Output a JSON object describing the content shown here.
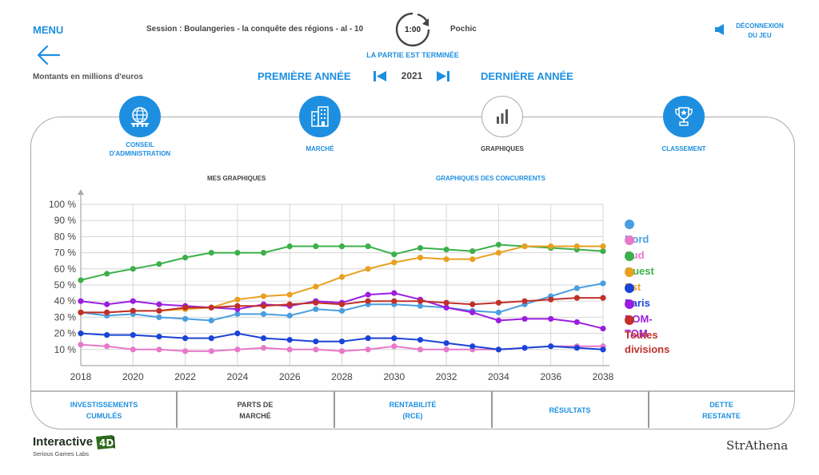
{
  "header": {
    "menu_label": "MENU",
    "session": "Session : Boulangeries - la conquête des régions - al - 10",
    "timer": "1:00",
    "user": "Pochic",
    "status": "LA PARTIE EST TERMINÉE",
    "logout_line1": "DÉCONNEXION",
    "logout_line2": "DU JEU"
  },
  "subheader": {
    "amount_note": "Montants en millions d'euros",
    "first_year_label": "PREMIÈRE ANNÉE",
    "year": "2021",
    "last_year_label": "DERNIÈRE ANNÉE"
  },
  "tabs": [
    {
      "line1": "CONSEIL",
      "line2": "D'ADMINISTRATION",
      "icon": "globe-board-icon",
      "active": false
    },
    {
      "line1": "MARCHÉ",
      "line2": "",
      "icon": "buildings-icon",
      "active": false
    },
    {
      "line1": "GRAPHIQUES",
      "line2": "",
      "icon": "bar-chart-icon",
      "active": true
    },
    {
      "line1": "CLASSEMENT",
      "line2": "",
      "icon": "trophy-icon",
      "active": false
    }
  ],
  "subtabs": {
    "mine": "MES GRAPHIQUES",
    "competitors": "GRAPHIQUES DES CONCURRENTS"
  },
  "bottom_tabs": [
    {
      "line1": "INVESTISSEMENTS",
      "line2": "CUMULÉS",
      "active": false
    },
    {
      "line1": "PARTS DE",
      "line2": "MARCHÉ",
      "active": true
    },
    {
      "line1": "RENTABILITÉ",
      "line2": "(RCE)",
      "active": false
    },
    {
      "line1": "RÉSULTATS",
      "line2": "",
      "active": false
    },
    {
      "line1": "DETTE",
      "line2": "RESTANTE",
      "active": false
    }
  ],
  "branding": {
    "company": "Interactive",
    "company_4d": "4D",
    "company_sub": "Serious Games Labs",
    "partner": "StrAthena"
  },
  "colors": {
    "accent": "#1e8fe0"
  },
  "chart_data": {
    "type": "line",
    "title": "",
    "xlabel": "",
    "ylabel": "",
    "x": [
      2018,
      2019,
      2020,
      2021,
      2022,
      2023,
      2024,
      2025,
      2026,
      2027,
      2028,
      2029,
      2030,
      2031,
      2032,
      2033,
      2034,
      2035,
      2036,
      2037,
      2038
    ],
    "xticks": [
      "2018",
      "2020",
      "2022",
      "2024",
      "2026",
      "2028",
      "2030",
      "2032",
      "2034",
      "2036",
      "2038"
    ],
    "yticks": [
      "10 %",
      "20 %",
      "30 %",
      "40 %",
      "50 %",
      "60 %",
      "70 %",
      "80 %",
      "90 %",
      "100 %"
    ],
    "ylim": [
      0,
      100
    ],
    "xlim": [
      2018,
      2038
    ],
    "grid": true,
    "legend_position": "right",
    "series": [
      {
        "name": "Nord",
        "color": "#4a9ee0",
        "values": [
          33,
          31,
          32,
          30,
          29,
          28,
          32,
          32,
          31,
          35,
          34,
          38,
          38,
          37,
          36,
          34,
          33,
          38,
          43,
          48,
          51
        ]
      },
      {
        "name": "Sud",
        "color": "#e879c9",
        "values": [
          13,
          12,
          10,
          10,
          9,
          9,
          10,
          11,
          10,
          10,
          9,
          10,
          12,
          10,
          10,
          10,
          10,
          11,
          12,
          12,
          12
        ]
      },
      {
        "name": "Ouest",
        "color": "#3cb04a",
        "values": [
          53,
          57,
          60,
          63,
          67,
          70,
          70,
          70,
          74,
          74,
          74,
          74,
          69,
          73,
          72,
          71,
          75,
          74,
          73,
          72,
          71
        ]
      },
      {
        "name": "Est",
        "color": "#e8a020",
        "values": [
          33,
          33,
          34,
          34,
          35,
          36,
          41,
          43,
          44,
          49,
          55,
          60,
          64,
          67,
          66,
          66,
          70,
          74,
          74,
          74,
          74
        ]
      },
      {
        "name": "Paris",
        "color": "#1a44d6",
        "values": [
          20,
          19,
          19,
          18,
          17,
          17,
          20,
          17,
          16,
          15,
          15,
          17,
          17,
          16,
          14,
          12,
          10,
          11,
          12,
          11,
          10
        ]
      },
      {
        "name": "DOM-TOM",
        "color": "#9b1ee0",
        "values": [
          40,
          38,
          40,
          38,
          37,
          36,
          35,
          38,
          37,
          40,
          39,
          44,
          45,
          41,
          36,
          33,
          28,
          29,
          29,
          27,
          23
        ]
      },
      {
        "name": "Toutes divisions",
        "color": "#c0302a",
        "values": [
          33,
          33,
          34,
          34,
          36,
          36,
          37,
          37,
          38,
          39,
          38,
          40,
          40,
          40,
          39,
          38,
          39,
          40,
          41,
          42,
          42
        ]
      }
    ]
  }
}
